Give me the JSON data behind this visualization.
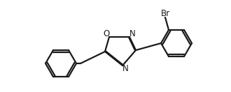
{
  "bg_color": "#ffffff",
  "line_color": "#1a1a1a",
  "text_color": "#1a1a1a",
  "label_N": "N",
  "label_O": "O",
  "label_Br": "Br",
  "linewidth": 1.6,
  "figsize": [
    3.3,
    1.32
  ],
  "dpi": 100
}
